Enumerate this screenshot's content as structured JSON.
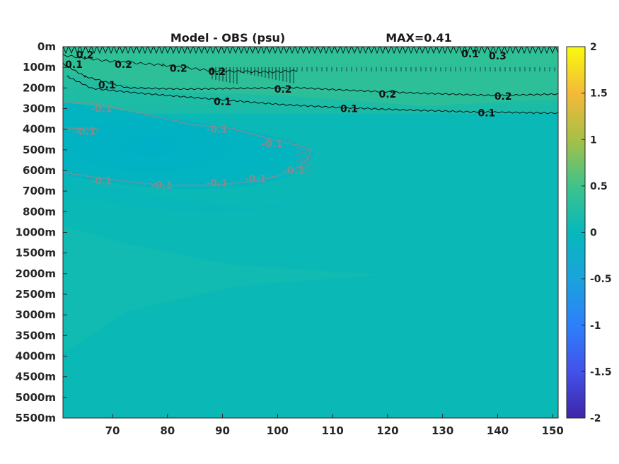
{
  "chart_data": {
    "type": "heatmap",
    "title": "Model - OBS (psu)",
    "max_label": "MAX=0.41",
    "xlabel": "",
    "ylabel": "",
    "x_ticks": [
      "70",
      "80",
      "90",
      "100",
      "110",
      "120",
      "130",
      "140",
      "150"
    ],
    "x_tick_values": [
      70,
      80,
      90,
      100,
      110,
      120,
      130,
      140,
      150
    ],
    "xlim": [
      61,
      151
    ],
    "y_ticks": [
      "0m",
      "100m",
      "200m",
      "300m",
      "400m",
      "500m",
      "600m",
      "700m",
      "800m",
      "1000m",
      "1500m",
      "2000m",
      "2500m",
      "3000m",
      "3500m",
      "4000m",
      "4500m",
      "5000m",
      "5500m"
    ],
    "colorbar": {
      "ticks": [
        "2",
        "1.5",
        "1",
        "0.5",
        "0",
        "-0.5",
        "-1",
        "-1.5",
        "-2"
      ],
      "tick_values": [
        2,
        1.5,
        1,
        0.5,
        0,
        -0.5,
        -1,
        -1.5,
        -2
      ],
      "range": [
        -2,
        2
      ],
      "colormap": "parula"
    },
    "contour_levels": [
      {
        "level": 0.2,
        "color": "#000000"
      },
      {
        "level": 0.1,
        "color": "#000000"
      },
      {
        "level": -0.1,
        "color": "#8c8c8c"
      }
    ],
    "contour_labels": [
      {
        "text": "0.2",
        "x": 65,
        "depth_index": 0.4,
        "sign": "pos"
      },
      {
        "text": "0.2",
        "x": 72,
        "depth_index": 0.85,
        "sign": "pos"
      },
      {
        "text": "0.1",
        "x": 63,
        "depth_index": 0.85,
        "sign": "pos"
      },
      {
        "text": "0.2",
        "x": 82,
        "depth_index": 1.05,
        "sign": "pos"
      },
      {
        "text": "0.2",
        "x": 89,
        "depth_index": 1.2,
        "sign": "pos"
      },
      {
        "text": "0.1",
        "x": 69,
        "depth_index": 1.85,
        "sign": "pos"
      },
      {
        "text": "0.2",
        "x": 101,
        "depth_index": 2.05,
        "sign": "pos"
      },
      {
        "text": "0.1",
        "x": 90,
        "depth_index": 2.65,
        "sign": "pos"
      },
      {
        "text": "0.2",
        "x": 120,
        "depth_index": 2.3,
        "sign": "pos"
      },
      {
        "text": "0.1",
        "x": 113,
        "depth_index": 3.0,
        "sign": "pos"
      },
      {
        "text": "0.2",
        "x": 141,
        "depth_index": 2.4,
        "sign": "pos"
      },
      {
        "text": "0.1",
        "x": 138,
        "depth_index": 3.2,
        "sign": "pos"
      },
      {
        "text": "0.1",
        "x": 135,
        "depth_index": 0.35,
        "sign": "pos"
      },
      {
        "text": "0.3",
        "x": 140,
        "depth_index": 0.45,
        "sign": "pos"
      },
      {
        "text": "-0.1",
        "x": 68,
        "depth_index": 3.0,
        "sign": "neg"
      },
      {
        "text": "-0.1",
        "x": 65,
        "depth_index": 4.1,
        "sign": "neg"
      },
      {
        "text": "-0.1",
        "x": 89,
        "depth_index": 4.0,
        "sign": "neg"
      },
      {
        "text": "-0.1",
        "x": 99,
        "depth_index": 4.7,
        "sign": "neg"
      },
      {
        "text": "-0.1",
        "x": 68,
        "depth_index": 6.5,
        "sign": "neg"
      },
      {
        "text": "-0.1",
        "x": 79,
        "depth_index": 6.7,
        "sign": "neg"
      },
      {
        "text": "-0.1",
        "x": 89,
        "depth_index": 6.6,
        "sign": "neg"
      },
      {
        "text": "-0.1",
        "x": 96,
        "depth_index": 6.4,
        "sign": "neg"
      },
      {
        "text": "-0.1",
        "x": 103,
        "depth_index": 6.0,
        "sign": "neg"
      }
    ]
  }
}
